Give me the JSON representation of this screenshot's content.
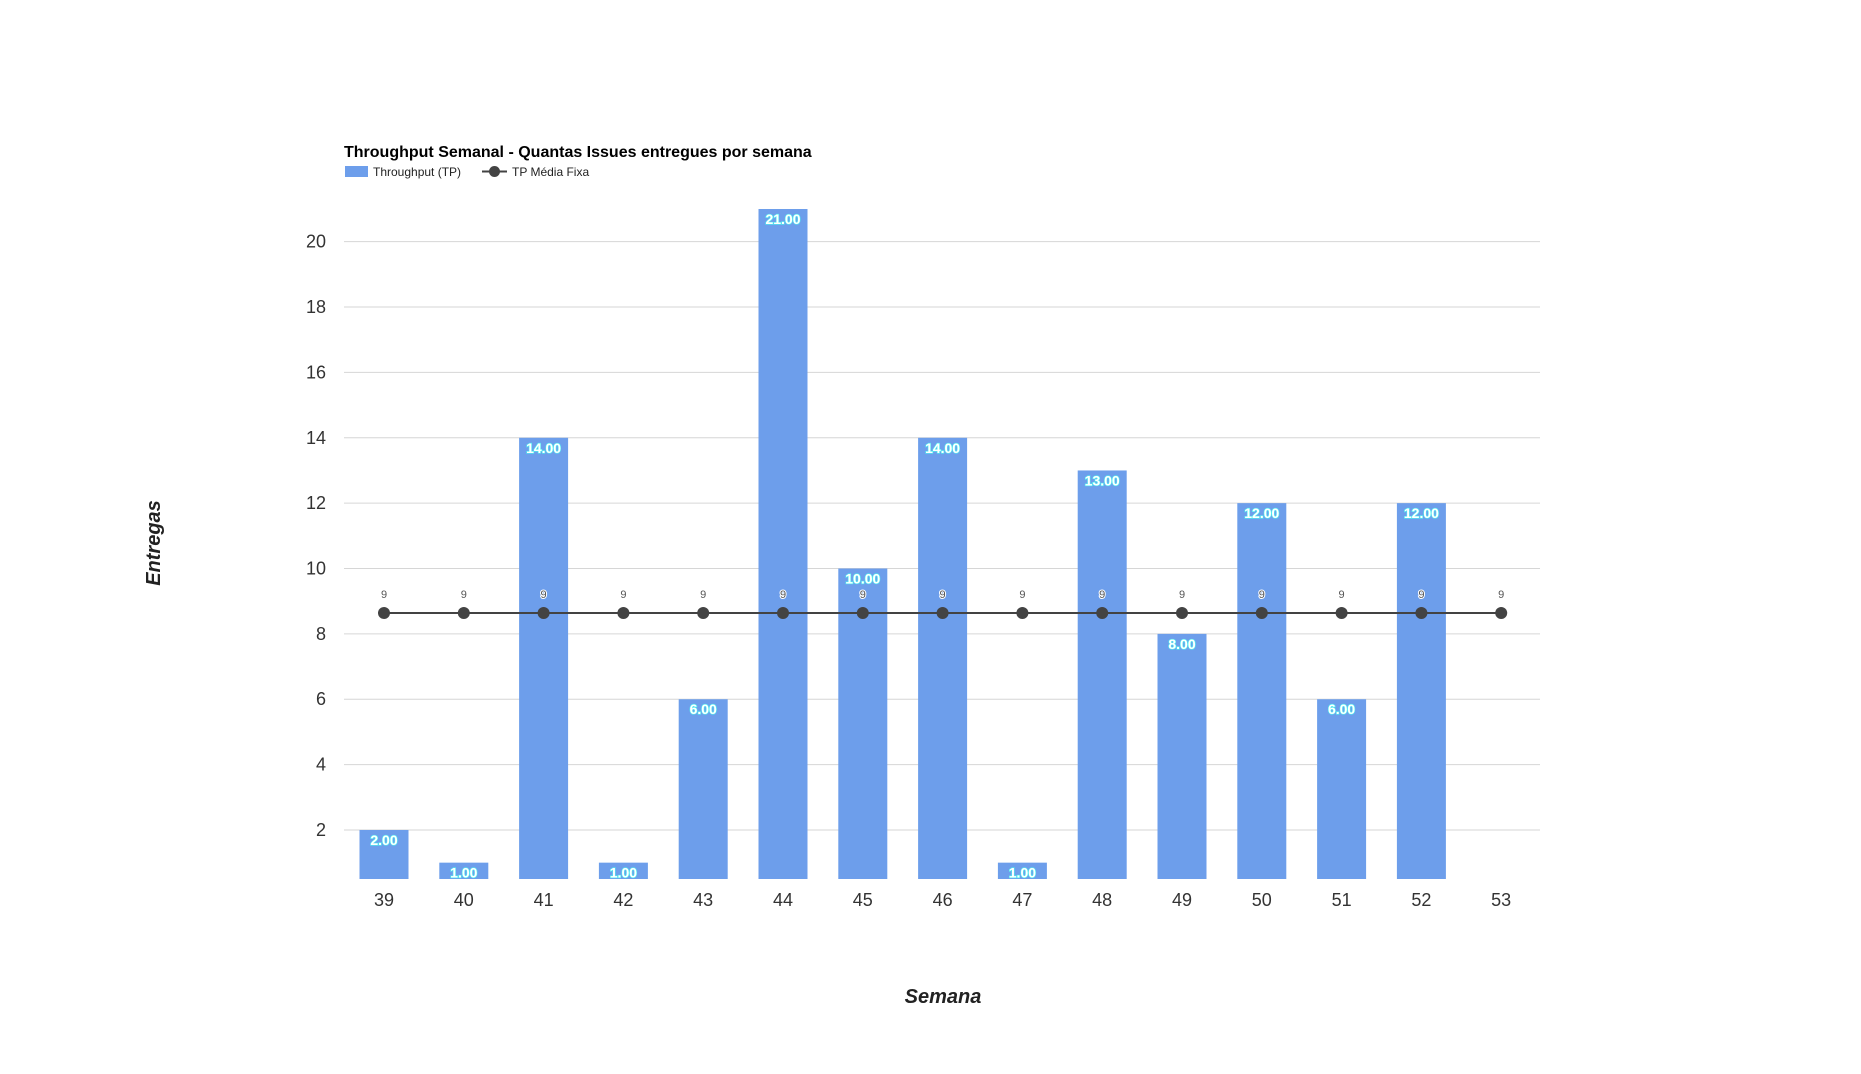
{
  "chart_data": {
    "type": "bar",
    "title": "Throughput Semanal - Quantas Issues entregues por semana",
    "xlabel": "Semana",
    "ylabel": "Entregas",
    "categories": [
      "39",
      "40",
      "41",
      "42",
      "43",
      "44",
      "45",
      "46",
      "47",
      "48",
      "49",
      "50",
      "51",
      "52",
      "53"
    ],
    "series": [
      {
        "name": "Throughput (TP)",
        "type": "bar",
        "color": "#6d9eeb",
        "values": [
          2,
          1,
          14,
          1,
          6,
          21,
          10,
          14,
          1,
          13,
          8,
          12,
          6,
          12,
          null
        ],
        "data_labels": [
          "2.00",
          "1.00",
          "14.00",
          "1.00",
          "6.00",
          "21.00",
          "10.00",
          "14.00",
          "1.00",
          "13.00",
          "8.00",
          "12.00",
          "6.00",
          "12.00",
          ""
        ]
      },
      {
        "name": "TP Média Fixa",
        "type": "line",
        "color": "#434343",
        "values": [
          8.64,
          8.64,
          8.64,
          8.64,
          8.64,
          8.64,
          8.64,
          8.64,
          8.64,
          8.64,
          8.64,
          8.64,
          8.64,
          8.64,
          8.64
        ],
        "data_labels": [
          "9",
          "9",
          "9",
          "9",
          "9",
          "9",
          "9",
          "9",
          "9",
          "9",
          "9",
          "9",
          "9",
          "9",
          "9"
        ]
      }
    ],
    "yticks": [
      "2",
      "4",
      "6",
      "8",
      "10",
      "12",
      "14",
      "16",
      "18",
      "20"
    ],
    "ylim": [
      0.5,
      21
    ],
    "grid": true,
    "legend_position": "top-left",
    "data_label_color": "#4ff0f0"
  }
}
